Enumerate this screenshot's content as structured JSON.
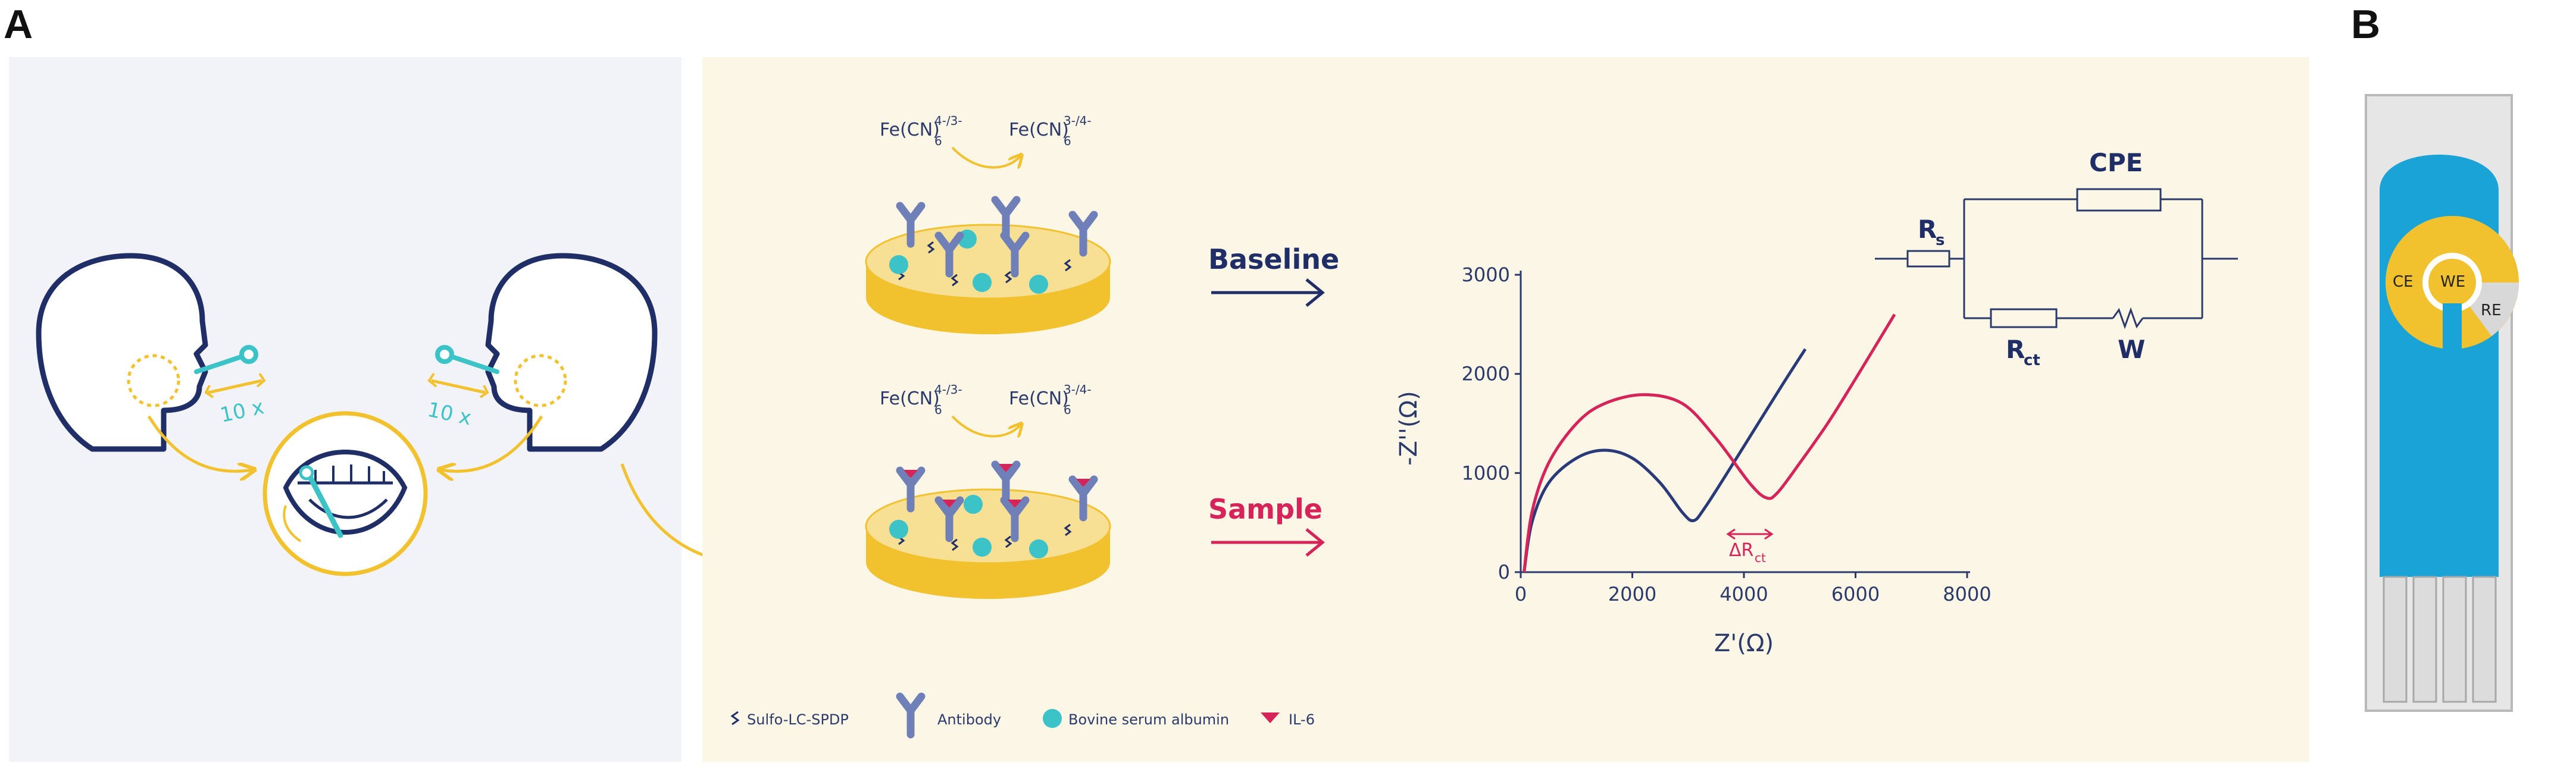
{
  "panel_labels": {
    "a": "A",
    "b": "B"
  },
  "sampling": {
    "repeat_left": "10 x",
    "repeat_right": "10 x"
  },
  "reaction": {
    "redox_left": "Fe(CN)",
    "redox_left_sub": "6",
    "redox_left_sup": "4-/3-",
    "redox_right": "Fe(CN)",
    "redox_right_sub": "6",
    "redox_right_sup": "3-/4-"
  },
  "arrows": {
    "baseline": "Baseline",
    "sample": "Sample"
  },
  "legend": {
    "linker": "Sulfo-LC-SPDP",
    "antibody": "Antibody",
    "bsa": "Bovine serum albumin",
    "il6": "IL-6"
  },
  "circuit": {
    "rs": "R",
    "rs_sub": "s",
    "cpe": "CPE",
    "rct": "R",
    "rct_sub": "ct",
    "w": "W"
  },
  "chart_data": {
    "type": "line",
    "xlabel": "Z'(Ω)",
    "ylabel": "-Z''(Ω)",
    "xlim": [
      0,
      8000
    ],
    "ylim": [
      0,
      3000
    ],
    "xticks": [
      "0",
      "2000",
      "4000",
      "6000",
      "8000"
    ],
    "yticks": [
      "0",
      "1000",
      "2000",
      "3000"
    ],
    "annotation": {
      "text": "ΔR",
      "sub": "ct"
    },
    "series": [
      {
        "color": "#2a3a78",
        "x": [
          60,
          200,
          500,
          1000,
          1500,
          2000,
          2500,
          2900,
          3100,
          3300,
          3700,
          4200,
          4700,
          5100
        ],
        "y": [
          0,
          500,
          900,
          1150,
          1230,
          1150,
          900,
          600,
          520,
          650,
          1000,
          1450,
          1900,
          2250
        ]
      },
      {
        "color": "#d6245a",
        "x": [
          60,
          200,
          500,
          1000,
          1500,
          2200,
          2900,
          3500,
          4100,
          4400,
          4600,
          5000,
          5500,
          6000,
          6700
        ],
        "y": [
          0,
          600,
          1100,
          1500,
          1700,
          1790,
          1700,
          1350,
          900,
          750,
          800,
          1100,
          1500,
          1950,
          2600
        ]
      }
    ]
  },
  "electrode": {
    "ce": "CE",
    "we": "WE",
    "re": "RE"
  },
  "colors": {
    "navy": "#1f2e66",
    "pink": "#d6245a",
    "gold": "#f2c12e",
    "teal": "#3cc3c8",
    "antibody": "#6f7fb8",
    "panel_left_bg": "#f1f3f8",
    "panel_mid_bg": "#fbf6e6",
    "strip_blue": "#1aa3d6"
  }
}
